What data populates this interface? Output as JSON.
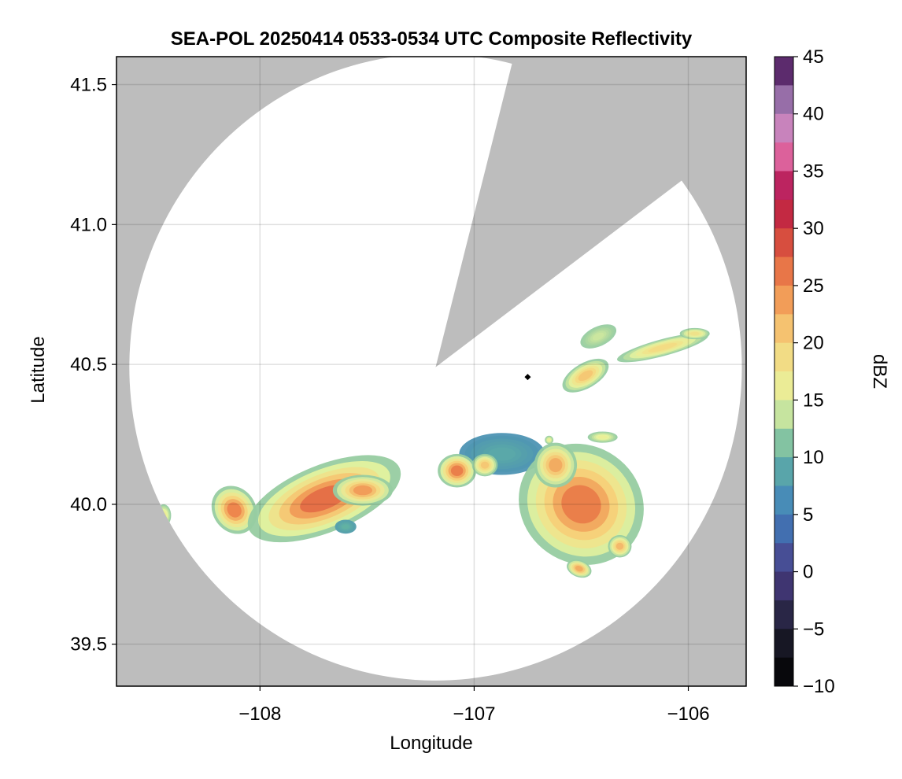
{
  "chart_data": {
    "type": "heatmap",
    "title": "SEA-POL 20250414 0533-0534 UTC Composite Reflectivity",
    "xlabel": "Longitude",
    "ylabel": "Latitude",
    "xlim": [
      -108.67,
      -105.73
    ],
    "ylim": [
      39.35,
      41.6
    ],
    "xticks": [
      -108,
      -107,
      -106
    ],
    "xtick_labels": [
      "−108",
      "−107",
      "−106"
    ],
    "yticks": [
      39.5,
      40.0,
      40.5,
      41.0,
      41.5
    ],
    "ytick_labels": [
      "39.5",
      "40.0",
      "40.5",
      "41.0",
      "41.5"
    ],
    "grid": true,
    "background_color": "#bdbdbd",
    "coverage_color": "#ffffff",
    "radar": {
      "center": [
        -107.18,
        40.49
      ],
      "range_lon": 1.43,
      "range_lat": 1.12,
      "blocked_sector_edges": [
        [
          -106.83,
          41.53
        ],
        [
          -106.07,
          41.12
        ]
      ],
      "marker": [
        -106.75,
        40.455
      ]
    },
    "colorbar": {
      "label": "dBZ",
      "range": [
        -10,
        45
      ],
      "ticks": [
        -10,
        -5,
        0,
        5,
        10,
        15,
        20,
        25,
        30,
        35,
        40,
        45
      ],
      "tick_labels": [
        "−10",
        "−5",
        "0",
        "5",
        "10",
        "15",
        "20",
        "25",
        "30",
        "35",
        "40",
        "45"
      ],
      "colormap": "Spectral_r + RdPu + Purples",
      "stops": [
        [
          -10,
          "#000000"
        ],
        [
          -5,
          "#1e1e30"
        ],
        [
          0,
          "#4a3d87"
        ],
        [
          5,
          "#3f7fbd"
        ],
        [
          10,
          "#62b2a3"
        ],
        [
          15,
          "#e7f49e"
        ],
        [
          20,
          "#f6d47c"
        ],
        [
          25,
          "#f08a4c"
        ],
        [
          30,
          "#cf3a3a"
        ],
        [
          33,
          "#b3124e"
        ],
        [
          37,
          "#e573ad"
        ],
        [
          40,
          "#b48fc6"
        ],
        [
          45,
          "#3f0a4f"
        ]
      ]
    },
    "echoes": [
      {
        "lon": -108.12,
        "lat": 39.98,
        "rlon": 0.1,
        "rlat": 0.09,
        "rot": 35,
        "peak": 25.5
      },
      {
        "lon": -108.45,
        "lat": 39.96,
        "rlon": 0.035,
        "rlat": 0.04,
        "rot": 0,
        "peak": 17
      },
      {
        "lon": -107.7,
        "lat": 40.02,
        "rlon": 0.38,
        "rlat": 0.12,
        "rot": 22,
        "peak": 27
      },
      {
        "lon": -107.52,
        "lat": 40.05,
        "rlon": 0.14,
        "rlat": 0.055,
        "rot": 0,
        "peak": 24
      },
      {
        "lon": -107.6,
        "lat": 39.92,
        "rlon": 0.05,
        "rlat": 0.025,
        "rot": 0,
        "peak": 10
      },
      {
        "lon": -106.87,
        "lat": 40.18,
        "rlon": 0.2,
        "rlat": 0.075,
        "rot": 0,
        "peak": 9
      },
      {
        "lon": -107.08,
        "lat": 40.12,
        "rlon": 0.09,
        "rlat": 0.06,
        "rot": 0,
        "peak": 26
      },
      {
        "lon": -106.95,
        "lat": 40.14,
        "rlon": 0.06,
        "rlat": 0.04,
        "rot": 0,
        "peak": 21
      },
      {
        "lon": -106.5,
        "lat": 40.0,
        "rlon": 0.3,
        "rlat": 0.21,
        "rot": -35,
        "peak": 26
      },
      {
        "lon": -106.62,
        "lat": 40.14,
        "rlon": 0.1,
        "rlat": 0.08,
        "rot": 0,
        "peak": 23
      },
      {
        "lon": -106.32,
        "lat": 39.85,
        "rlon": 0.055,
        "rlat": 0.04,
        "rot": 0,
        "peak": 22
      },
      {
        "lon": -106.51,
        "lat": 39.77,
        "rlon": 0.06,
        "rlat": 0.03,
        "rot": -20,
        "peak": 23
      },
      {
        "lon": -106.48,
        "lat": 40.46,
        "rlon": 0.12,
        "rlat": 0.045,
        "rot": 30,
        "peak": 21
      },
      {
        "lon": -106.42,
        "lat": 40.6,
        "rlon": 0.09,
        "rlat": 0.035,
        "rot": 25,
        "peak": 14
      },
      {
        "lon": -106.12,
        "lat": 40.56,
        "rlon": 0.22,
        "rlat": 0.03,
        "rot": 15,
        "peak": 19
      },
      {
        "lon": -105.97,
        "lat": 40.61,
        "rlon": 0.07,
        "rlat": 0.02,
        "rot": 0,
        "peak": 18
      },
      {
        "lon": -106.4,
        "lat": 40.24,
        "rlon": 0.07,
        "rlat": 0.02,
        "rot": 0,
        "peak": 16
      },
      {
        "lon": -106.65,
        "lat": 40.23,
        "rlon": 0.02,
        "rlat": 0.015,
        "rot": 0,
        "peak": 16
      }
    ]
  }
}
